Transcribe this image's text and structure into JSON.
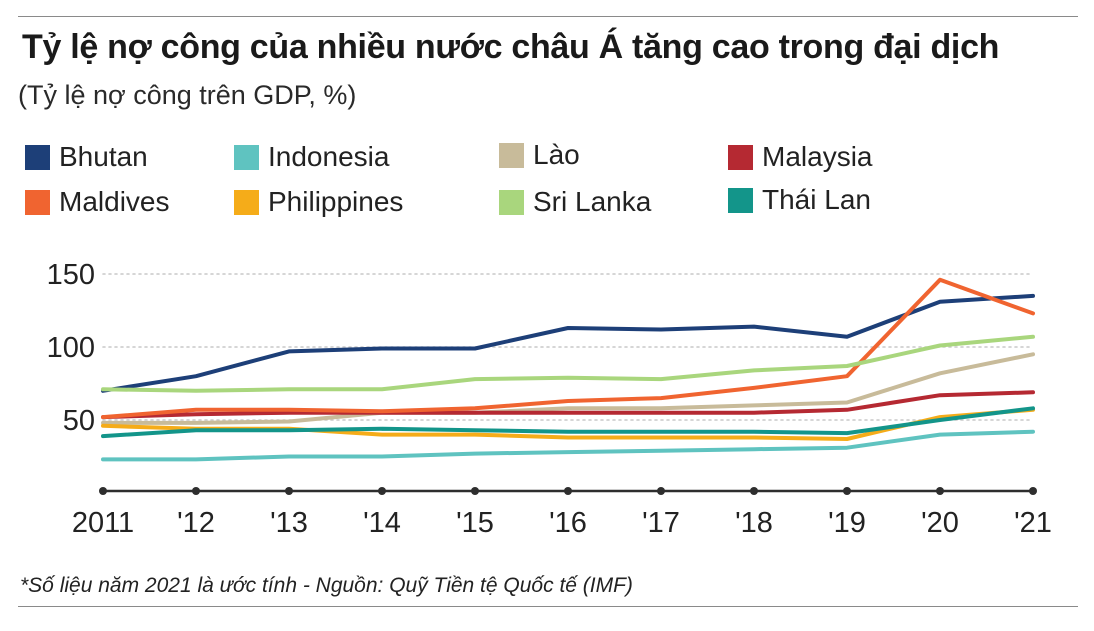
{
  "title": "Tỷ lệ nợ công của nhiều nước châu Á tăng cao trong đại dịch",
  "subtitle": "(Tỷ lệ nợ công trên GDP, %)",
  "footnote": "*Số liệu năm 2021 là ước tính  -  Nguồn: Quỹ Tiền tệ Quốc tế (IMF)",
  "legend": [
    {
      "label": "Bhutan",
      "color": "#1d3f78"
    },
    {
      "label": "Indonesia",
      "color": "#5fc3c0"
    },
    {
      "label": "Lào",
      "color": "#c8bb9a"
    },
    {
      "label": "Malaysia",
      "color": "#b52932"
    },
    {
      "label": "Maldives",
      "color": "#f06430"
    },
    {
      "label": "Philippines",
      "color": "#f5ac19"
    },
    {
      "label": "Sri Lanka",
      "color": "#a9d67d"
    },
    {
      "label": "Thái Lan",
      "color": "#13958a"
    }
  ],
  "chart_data": {
    "type": "line",
    "title": "Tỷ lệ nợ công của nhiều nước châu Á tăng cao trong đại dịch",
    "ylabel": "Tỷ lệ nợ công trên GDP, %",
    "xlabel": "",
    "categories": [
      "2011",
      "'12",
      "'13",
      "'14",
      "'15",
      "'16",
      "'17",
      "'18",
      "'19",
      "'20",
      "'21"
    ],
    "y_ticks": [
      50,
      100,
      150
    ],
    "ylim": [
      0,
      158
    ],
    "grid": "horizontal dotted",
    "series": [
      {
        "name": "Bhutan",
        "color": "#1d3f78",
        "values": [
          70,
          80,
          97,
          99,
          99,
          113,
          112,
          114,
          107,
          131,
          135
        ]
      },
      {
        "name": "Indonesia",
        "color": "#5fc3c0",
        "values": [
          23,
          23,
          25,
          25,
          27,
          28,
          29,
          30,
          31,
          40,
          42
        ]
      },
      {
        "name": "Lào",
        "color": "#c8bb9a",
        "values": [
          48,
          48,
          49,
          55,
          55,
          58,
          58,
          60,
          62,
          82,
          95
        ]
      },
      {
        "name": "Malaysia",
        "color": "#b52932",
        "values": [
          52,
          54,
          55,
          55,
          55,
          55,
          55,
          55,
          57,
          67,
          69
        ]
      },
      {
        "name": "Maldives",
        "color": "#f06430",
        "values": [
          52,
          57,
          57,
          56,
          58,
          63,
          65,
          72,
          80,
          146,
          123
        ]
      },
      {
        "name": "Philippines",
        "color": "#f5ac19",
        "values": [
          46,
          44,
          44,
          40,
          40,
          38,
          38,
          38,
          37,
          52,
          57
        ]
      },
      {
        "name": "Sri Lanka",
        "color": "#a9d67d",
        "values": [
          71,
          70,
          71,
          71,
          78,
          79,
          78,
          84,
          87,
          101,
          107
        ]
      },
      {
        "name": "Thái Lan",
        "color": "#13958a",
        "values": [
          39,
          43,
          43,
          44,
          43,
          42,
          42,
          42,
          41,
          50,
          58
        ]
      }
    ]
  }
}
